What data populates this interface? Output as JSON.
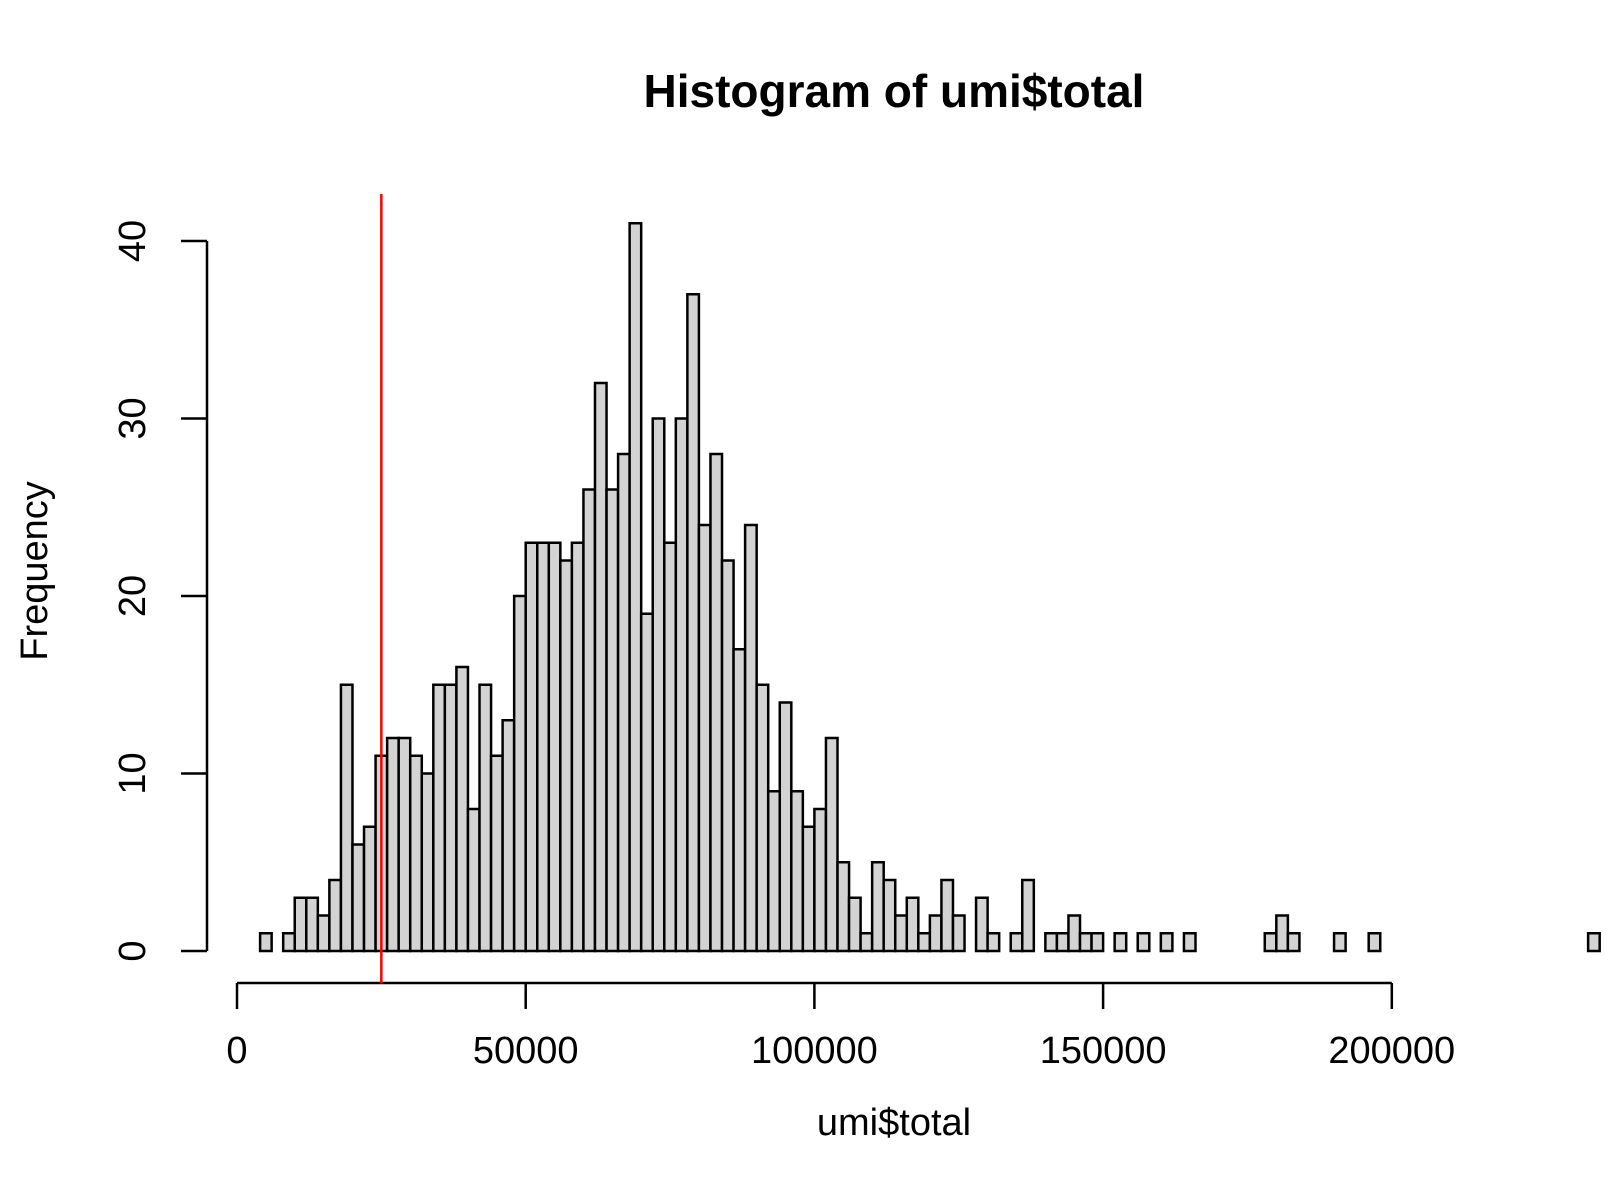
{
  "chart_data": {
    "type": "bar",
    "title": "Histogram of umi$total",
    "xlabel": "umi$total",
    "ylabel": "Frequency",
    "bin_width": 2000,
    "bin_start": 4000,
    "values": [
      1,
      0,
      1,
      3,
      3,
      2,
      4,
      15,
      6,
      7,
      11,
      12,
      12,
      11,
      10,
      15,
      15,
      16,
      8,
      15,
      11,
      13,
      20,
      23,
      23,
      23,
      22,
      23,
      26,
      32,
      26,
      28,
      41,
      19,
      30,
      23,
      30,
      37,
      24,
      28,
      22,
      17,
      24,
      15,
      9,
      14,
      9,
      7,
      8,
      12,
      5,
      3,
      1,
      5,
      4,
      2,
      3,
      1,
      2,
      4,
      2,
      0,
      3,
      1,
      0,
      1,
      4,
      0,
      1,
      1,
      2,
      1,
      1,
      0,
      1,
      0,
      1,
      0,
      1,
      0,
      1,
      0,
      0,
      0,
      0,
      0,
      0,
      1,
      2,
      1,
      0,
      0,
      0,
      1,
      0,
      0,
      1,
      0,
      0,
      0,
      0,
      0,
      0,
      0,
      0,
      0,
      0,
      0,
      0,
      0,
      0,
      0,
      0,
      0,
      0,
      1
    ],
    "xlim": [
      0,
      236000
    ],
    "ylim": [
      0,
      41
    ],
    "xticks": [
      0,
      50000,
      100000,
      150000,
      200000
    ],
    "yticks": [
      0,
      10,
      20,
      30,
      40
    ],
    "vline": 25000,
    "colors": {
      "bar_fill": "#d3d3d3",
      "bar_stroke": "#000000",
      "vline": "#ff0000"
    },
    "grid": false
  }
}
